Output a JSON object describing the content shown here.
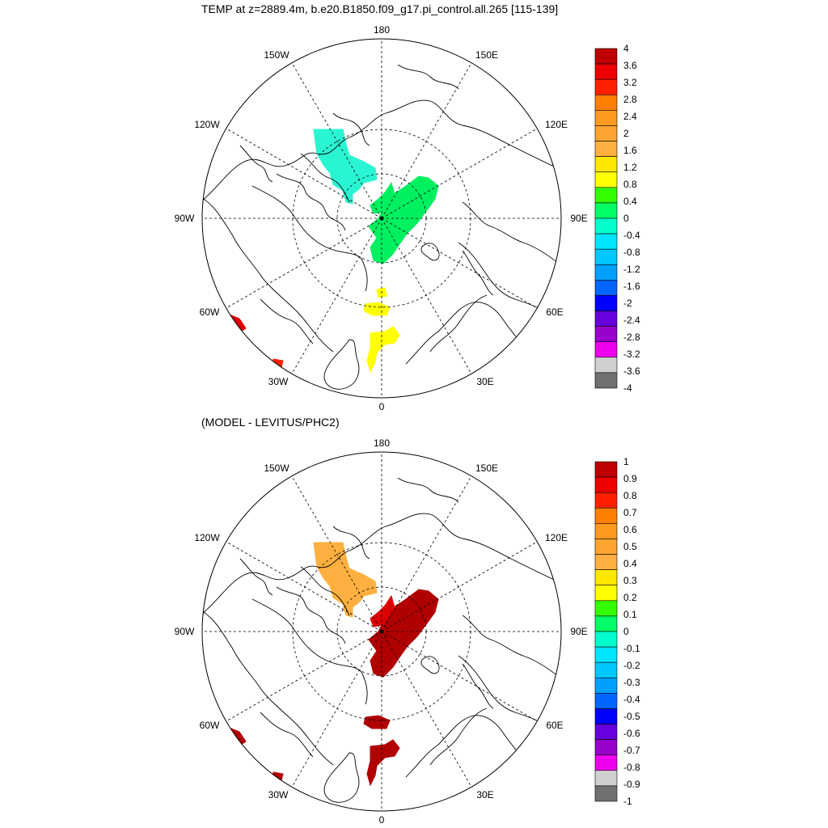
{
  "top_panel": {
    "title": "TEMP at z=2889.4m, b.e20.B1850.f09_g17.pi_control.all.265 [115-139]",
    "longitude_labels": [
      "180",
      "150E",
      "120E",
      "90E",
      "60E",
      "30E",
      "0",
      "30W",
      "60W",
      "90W",
      "120W",
      "150W"
    ],
    "colorbar": {
      "labels": [
        "4",
        "3.6",
        "3.2",
        "2.8",
        "2.4",
        "2",
        "1.6",
        "1.2",
        "0.8",
        "0.4",
        "0",
        "-0.4",
        "-0.8",
        "-1.2",
        "-1.6",
        "-2",
        "-2.4",
        "-2.8",
        "-3.2",
        "-3.6",
        "-4"
      ],
      "colors": [
        "#c00000",
        "#ee0000",
        "#ff2000",
        "#ff8000",
        "#ff9a20",
        "#ffa430",
        "#ffb040",
        "#ffe800",
        "#ffff00",
        "#33ff00",
        "#00ff66",
        "#00ffcc",
        "#00e5ff",
        "#00c8ff",
        "#00a0ff",
        "#0066ff",
        "#0000ff",
        "#6600dd",
        "#9900cc",
        "#ee00ee",
        "#d0d0d0",
        "#707070"
      ]
    },
    "patches": [
      {
        "region": "canada-basin",
        "color": "#2af5d2"
      },
      {
        "region": "eurasian-basin",
        "color": "#00f060"
      },
      {
        "region": "eurasian-basin-small",
        "color": "#00f060"
      },
      {
        "region": "fram-strait",
        "color": "#ffff00"
      },
      {
        "region": "fram-strait-upper",
        "color": "#ffff00"
      },
      {
        "region": "greenland-sea",
        "color": "#ffff00"
      },
      {
        "region": "labrador",
        "color": "#dd0000"
      },
      {
        "region": "irminger",
        "color": "#ff2000"
      }
    ]
  },
  "bottom_panel": {
    "title": "(MODEL - LEVITUS/PHC2)",
    "longitude_labels": [
      "180",
      "150E",
      "120E",
      "90E",
      "60E",
      "30E",
      "0",
      "30W",
      "60W",
      "90W",
      "120W",
      "150W"
    ],
    "colorbar": {
      "labels": [
        "1",
        "0.9",
        "0.8",
        "0.7",
        "0.6",
        "0.5",
        "0.4",
        "0.3",
        "0.2",
        "0.1",
        "0",
        "-0.1",
        "-0.2",
        "-0.3",
        "-0.4",
        "-0.5",
        "-0.6",
        "-0.7",
        "-0.8",
        "-0.9",
        "-1"
      ],
      "colors": [
        "#c00000",
        "#ee0000",
        "#ff2000",
        "#ff8000",
        "#ff9a20",
        "#ffa430",
        "#ffb040",
        "#ffe800",
        "#ffff00",
        "#33ff00",
        "#00ff66",
        "#00ffcc",
        "#00e5ff",
        "#00c8ff",
        "#00a0ff",
        "#0066ff",
        "#0000ff",
        "#6600dd",
        "#9900cc",
        "#ee00ee",
        "#d0d0d0",
        "#707070"
      ]
    },
    "patches": [
      {
        "region": "canada-basin",
        "color": "#ffb040"
      },
      {
        "region": "eurasian-basin",
        "color": "#b00000"
      },
      {
        "region": "eurasian-basin-small",
        "color": "#dd0000"
      },
      {
        "region": "fram-strait",
        "color": "#b00000"
      },
      {
        "region": "greenland-sea",
        "color": "#b00000"
      },
      {
        "region": "labrador",
        "color": "#b00000"
      },
      {
        "region": "irminger",
        "color": "#b00000"
      }
    ]
  }
}
